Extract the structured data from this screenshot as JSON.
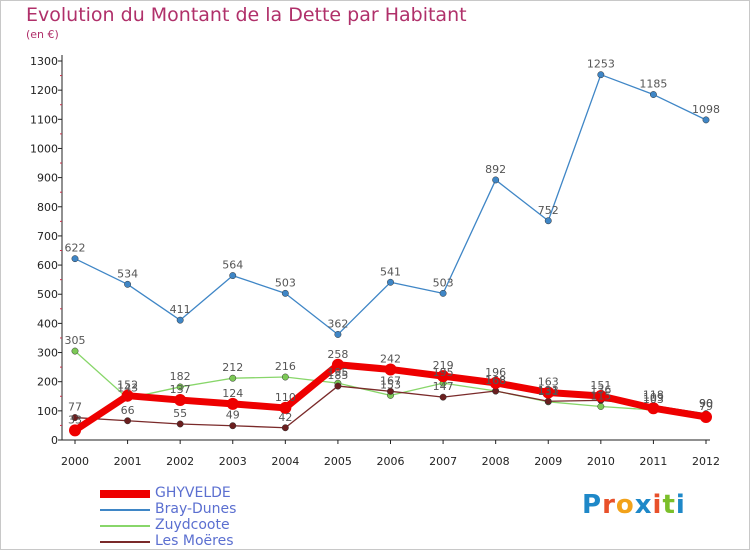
{
  "header": {
    "title": "Evolution du Montant de la Dette par Habitant",
    "unit": "(en €)"
  },
  "logo": {
    "text": "Proxiti",
    "letter_colors": [
      "#1e88c8",
      "#e8502a",
      "#f2a21a",
      "#1e88c8",
      "#e8502a",
      "#7bbf2a",
      "#1e88c8"
    ]
  },
  "chart_data": {
    "type": "line",
    "title": "Evolution du Montant de la Dette par Habitant",
    "subtitle": "(en €)",
    "x": [
      "2000",
      "2001",
      "2002",
      "2003",
      "2004",
      "2005",
      "2006",
      "2007",
      "2008",
      "2009",
      "2010",
      "2011",
      "2012"
    ],
    "ylim": [
      0,
      1300
    ],
    "yticks": [
      0,
      100,
      200,
      300,
      400,
      500,
      600,
      700,
      800,
      900,
      1000,
      1100,
      1200,
      1300
    ],
    "grid": false,
    "legend_position": "bottom-left",
    "series": [
      {
        "name": "Bray-Dunes",
        "color": "#3f86c6",
        "point_color": "#3f86c6",
        "values": [
          622,
          534,
          411,
          564,
          503,
          362,
          541,
          503,
          892,
          752,
          1253,
          1185,
          1098
        ]
      },
      {
        "name": "Zuydcoote",
        "color": "#88d66a",
        "point_color": "#7cc956",
        "values": [
          305,
          143,
          182,
          212,
          216,
          195,
          153,
          195,
          168,
          131,
          115,
          103,
          90
        ]
      },
      {
        "name": "Les Moëres",
        "color": "#7a2a2a",
        "point_color": "#6b1f1f",
        "values": [
          77,
          66,
          55,
          49,
          42,
          185,
          167,
          147,
          168,
          133,
          136,
          118,
          90
        ]
      },
      {
        "name": "GHYVELDE",
        "color": "#ee0000",
        "point_color": "#ee0000",
        "values": [
          33,
          152,
          137,
          124,
          110,
          258,
          242,
          219,
          196,
          163,
          151,
          109,
          79
        ]
      }
    ]
  },
  "legend": [
    {
      "label": "GHYVELDE",
      "color": "#ee0000",
      "width": 8
    },
    {
      "label": "Bray-Dunes",
      "color": "#3f86c6",
      "width": 1.5
    },
    {
      "label": "Zuydcoote",
      "color": "#88d66a",
      "width": 1.5
    },
    {
      "label": "Les Moëres",
      "color": "#7a2a2a",
      "width": 1.5
    }
  ]
}
